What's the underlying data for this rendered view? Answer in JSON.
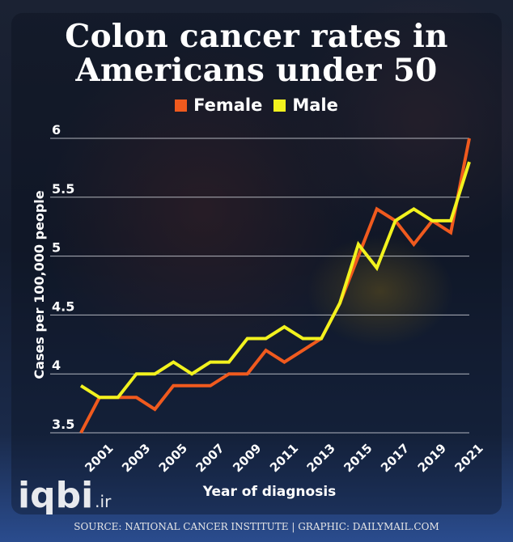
{
  "title": "Colon cancer rates in Americans under 50",
  "source": "SOURCE: NATIONAL CANCER INSTITUTE  |  GRAPHIC: DAILYMAIL.COM",
  "watermark": {
    "name": "iqbi",
    "tld": ".ir"
  },
  "chart_data": {
    "type": "line",
    "title": "Colon cancer rates in Americans under 50",
    "xlabel": "Year of diagnosis",
    "ylabel": "Cases per 100,000 people",
    "ylim": [
      3.5,
      6
    ],
    "yticks": [
      3.5,
      4,
      4.5,
      5,
      5.5,
      6
    ],
    "xticks": [
      2001,
      2003,
      2005,
      2007,
      2009,
      2011,
      2013,
      2015,
      2017,
      2019,
      2021
    ],
    "xlim": [
      2000,
      2021
    ],
    "grid": true,
    "legend_position": "top-center",
    "x": [
      2000,
      2001,
      2002,
      2003,
      2004,
      2005,
      2006,
      2007,
      2008,
      2009,
      2010,
      2011,
      2012,
      2013,
      2014,
      2015,
      2016,
      2017,
      2018,
      2019,
      2020,
      2021
    ],
    "series": [
      {
        "name": "Female",
        "color": "#f05a1e",
        "values": [
          3.5,
          3.8,
          3.8,
          3.8,
          3.7,
          3.9,
          3.9,
          3.9,
          4.0,
          4.0,
          4.2,
          4.1,
          4.2,
          4.3,
          4.6,
          5.0,
          5.4,
          5.3,
          5.1,
          5.3,
          5.2,
          6.0
        ]
      },
      {
        "name": "Male",
        "color": "#f2f21e",
        "values": [
          3.9,
          3.8,
          3.8,
          4.0,
          4.0,
          4.1,
          4.0,
          4.1,
          4.1,
          4.3,
          4.3,
          4.4,
          4.3,
          4.3,
          4.6,
          5.1,
          4.9,
          5.3,
          5.4,
          5.3,
          5.3,
          5.8
        ]
      }
    ]
  }
}
